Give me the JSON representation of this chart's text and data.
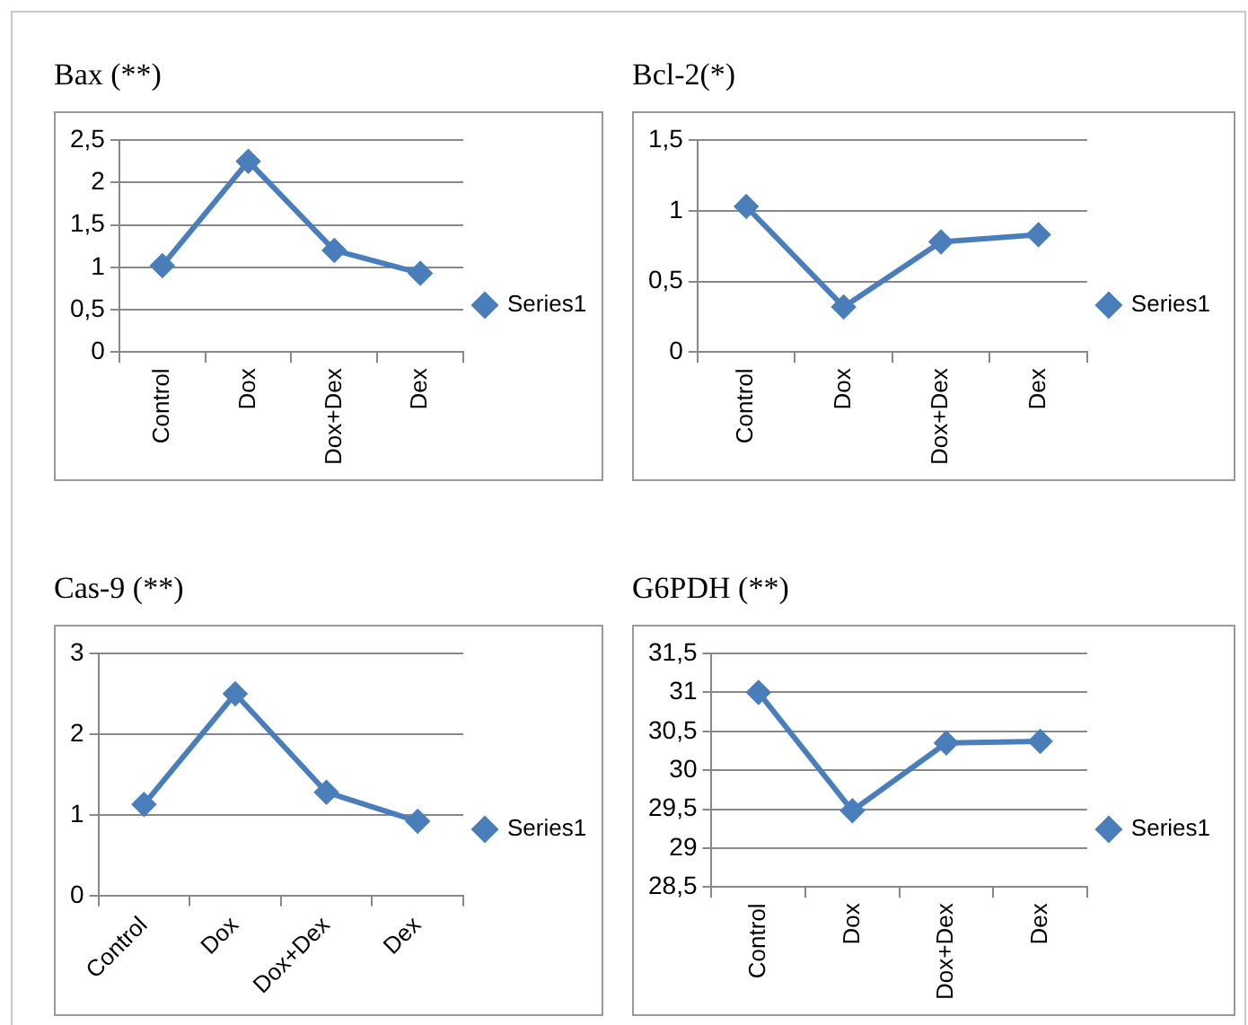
{
  "chart_data": [
    {
      "type": "line",
      "title": "Bax (**)",
      "categories": [
        "Control",
        "Dox",
        "Dox+Dex",
        "Dex"
      ],
      "series": [
        {
          "name": "Series1",
          "color": "#4a7ebb",
          "values": [
            1.02,
            2.25,
            1.2,
            0.93
          ]
        }
      ],
      "ylim": [
        0,
        2.5
      ],
      "yticks": [
        0,
        {
          "value": 0.5,
          "label": "0,5"
        },
        1,
        {
          "value": 1.5,
          "label": "1,5"
        },
        2,
        {
          "value": 2.5,
          "label": "2,5"
        }
      ],
      "grid": "y",
      "legend": "right",
      "marker": "diamond",
      "line_style": "solid"
    },
    {
      "type": "line",
      "title": "Bcl-2(*)",
      "categories": [
        "Control",
        "Dox",
        "Dox+Dex",
        "Dex"
      ],
      "series": [
        {
          "name": "Series1",
          "color": "#4a7ebb",
          "values": [
            1.03,
            0.32,
            0.78,
            0.83
          ]
        }
      ],
      "ylim": [
        0,
        1.5
      ],
      "yticks": [
        0,
        {
          "value": 0.5,
          "label": "0,5"
        },
        1,
        {
          "value": 1.5,
          "label": "1,5"
        }
      ],
      "grid": "y",
      "legend": "right",
      "marker": "diamond",
      "line_style": "solid"
    },
    {
      "type": "line",
      "title": "Cas-9 (**)",
      "categories": [
        "Control",
        "Dox",
        "Dox+Dex",
        "Dex"
      ],
      "series": [
        {
          "name": "Series1",
          "color": "#4a7ebb",
          "values": [
            1.13,
            2.5,
            1.28,
            0.92
          ]
        }
      ],
      "ylim": [
        0,
        3
      ],
      "yticks": [
        0,
        1,
        2,
        3
      ],
      "grid": "y",
      "legend": "right",
      "marker": "diamond",
      "line_style": "solid"
    },
    {
      "type": "line",
      "title": "G6PDH (**)",
      "categories": [
        "Control",
        "Dox",
        "Dox+Dex",
        "Dex"
      ],
      "series": [
        {
          "name": "Series1",
          "color": "#4a7ebb",
          "values": [
            31.0,
            29.48,
            30.35,
            30.37
          ]
        }
      ],
      "ylim": [
        28.5,
        31.5
      ],
      "yticks": [
        {
          "value": 28.5,
          "label": "28,5"
        },
        29,
        {
          "value": 29.5,
          "label": "29,5"
        },
        30,
        {
          "value": 30.5,
          "label": "30,5"
        },
        31,
        {
          "value": 31.5,
          "label": "31,5"
        }
      ],
      "grid": "y",
      "legend": "right",
      "marker": "diamond",
      "line_style": "solid"
    }
  ]
}
